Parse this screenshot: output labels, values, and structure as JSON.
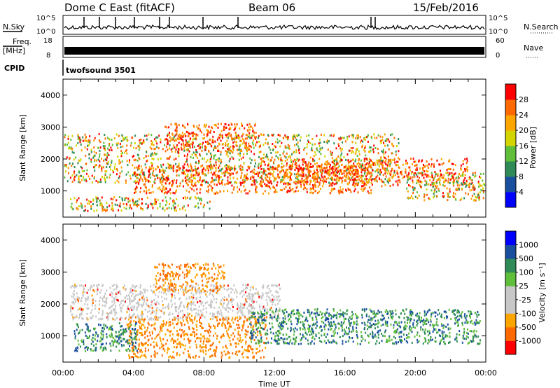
{
  "header": {
    "station": "Dome C East (fitACF)",
    "beam": "Beam 06",
    "date": "15/Feb/2016"
  },
  "strip": {
    "nsky_label": "N.Sky",
    "nsearch_label": "N.Search",
    "freq_label": "Freq.",
    "freq_unit": "[MHz]",
    "nave_label": "Nave",
    "cpid_label": "CPID",
    "cpid_value": "twofsound 3501",
    "noise_ticks": [
      "10^5",
      "10^0"
    ],
    "freq_ticks": [
      "18",
      "8"
    ],
    "nave_ticks": [
      "60",
      "0"
    ]
  },
  "chart_data": [
    {
      "type": "heatmap",
      "ylabel": "Slant Range [km]",
      "xlabel": "",
      "ylim": [
        180,
        4500
      ],
      "yticks": [
        1000,
        2000,
        3000,
        4000
      ],
      "x_ticks": [
        "00:00",
        "04:00",
        "08:00",
        "12:00",
        "16:00",
        "20:00",
        "00:00"
      ],
      "colorbar": {
        "label": "Power [dB]",
        "ticks": [
          "28",
          "24",
          "20",
          "16",
          "12",
          "8",
          "4"
        ],
        "colors": [
          "#0000ff",
          "#1a4fa0",
          "#2e8b57",
          "#5fbf3a",
          "#d4d400",
          "#ffa500",
          "#ff6a00",
          "#ff0000"
        ]
      }
    },
    {
      "type": "heatmap",
      "ylabel": "Slant Range [km]",
      "xlabel": "Time UT",
      "ylim": [
        180,
        4500
      ],
      "yticks": [
        1000,
        2000,
        3000,
        4000
      ],
      "x_ticks": [
        "00:00",
        "04:00",
        "08:00",
        "12:00",
        "16:00",
        "20:00",
        "00:00"
      ],
      "colorbar": {
        "label": "Velocity [m s⁻¹]",
        "ticks": [
          "1000",
          "500",
          "100",
          "25",
          "-25",
          "-100",
          "-500",
          "-1000"
        ],
        "colors": [
          "#ff0000",
          "#ff6a00",
          "#ffa500",
          "#c8c8c8",
          "#c8c8c8",
          "#5fbf3a",
          "#2e8b57",
          "#1a4fa0",
          "#0000ff"
        ]
      }
    }
  ]
}
